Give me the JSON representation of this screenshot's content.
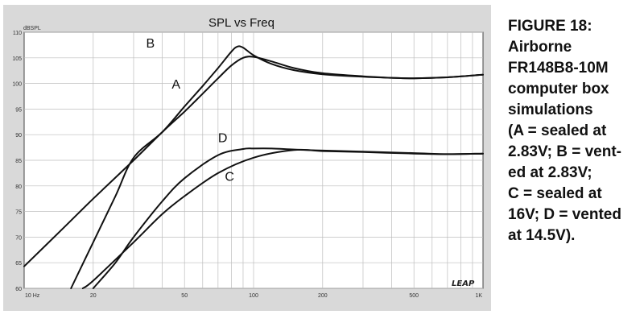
{
  "chart_data": {
    "type": "line",
    "title": "SPL vs Freq",
    "ylabel": "dBSPL",
    "xscale": "log",
    "xlim": [
      10,
      1000
    ],
    "ylim": [
      60,
      110
    ],
    "grid": true,
    "x_ticks": [
      10,
      20,
      50,
      100,
      200,
      500,
      1000
    ],
    "x_tick_labels": [
      "10 Hz",
      "20",
      "50",
      "100",
      "200",
      "500",
      "1K"
    ],
    "y_ticks": [
      60,
      65,
      70,
      75,
      80,
      85,
      90,
      95,
      100,
      105,
      110
    ],
    "y_tick_labels": [
      "60",
      "65",
      "70",
      "75",
      "80",
      "85",
      "90",
      "95",
      "100",
      "105",
      "110"
    ],
    "logo": "LEAP",
    "series": [
      {
        "name": "A",
        "label_at": [
          44,
          99
        ],
        "points": [
          [
            10,
            64.3
          ],
          [
            15,
            72
          ],
          [
            20,
            77.5
          ],
          [
            30,
            85
          ],
          [
            40,
            90.5
          ],
          [
            50,
            94.5
          ],
          [
            60,
            98
          ],
          [
            70,
            101
          ],
          [
            80,
            103.5
          ],
          [
            90,
            105
          ],
          [
            100,
            105.2
          ],
          [
            120,
            104.3
          ],
          [
            150,
            103
          ],
          [
            200,
            102
          ],
          [
            300,
            101.4
          ],
          [
            400,
            101.1
          ],
          [
            500,
            101
          ],
          [
            700,
            101.2
          ],
          [
            1000,
            101.7
          ]
        ]
      },
      {
        "name": "B",
        "label_at": [
          34,
          107
        ],
        "points": [
          [
            16,
            60
          ],
          [
            20,
            69
          ],
          [
            25,
            78
          ],
          [
            30,
            85.5
          ],
          [
            40,
            90.5
          ],
          [
            50,
            95.5
          ],
          [
            60,
            99.5
          ],
          [
            70,
            103
          ],
          [
            80,
            106.2
          ],
          [
            85,
            107.2
          ],
          [
            90,
            107
          ],
          [
            100,
            105.5
          ],
          [
            120,
            103.8
          ],
          [
            150,
            102.6
          ],
          [
            200,
            101.8
          ],
          [
            300,
            101.3
          ],
          [
            400,
            101.1
          ],
          [
            500,
            101
          ],
          [
            700,
            101.2
          ],
          [
            1000,
            101.7
          ]
        ]
      },
      {
        "name": "C",
        "label_at": [
          75,
          81
        ],
        "points": [
          [
            18,
            60
          ],
          [
            20,
            61.5
          ],
          [
            30,
            69
          ],
          [
            40,
            74.5
          ],
          [
            50,
            78
          ],
          [
            70,
            82.5
          ],
          [
            100,
            85.5
          ],
          [
            150,
            87
          ],
          [
            200,
            86.8
          ],
          [
            300,
            86.6
          ],
          [
            500,
            86.3
          ],
          [
            700,
            86.2
          ],
          [
            1000,
            86.3
          ]
        ]
      },
      {
        "name": "D",
        "label_at": [
          70,
          88.5
        ],
        "points": [
          [
            20,
            60
          ],
          [
            25,
            65
          ],
          [
            30,
            70
          ],
          [
            40,
            77
          ],
          [
            50,
            81.5
          ],
          [
            70,
            86
          ],
          [
            90,
            87.2
          ],
          [
            100,
            87.3
          ],
          [
            120,
            87.3
          ],
          [
            150,
            87.1
          ],
          [
            200,
            86.9
          ],
          [
            300,
            86.7
          ],
          [
            500,
            86.4
          ],
          [
            700,
            86.2
          ],
          [
            1000,
            86.3
          ]
        ]
      }
    ]
  },
  "caption": {
    "title": "FIGURE 18:",
    "lines": [
      "Airborne",
      "FR148B8-10M",
      "computer box",
      "simulations",
      "(A = sealed at",
      "2.83V; B = vent-",
      "ed at 2.83V;",
      "C = sealed at",
      "16V; D = vented",
      "at 14.5V)."
    ]
  }
}
